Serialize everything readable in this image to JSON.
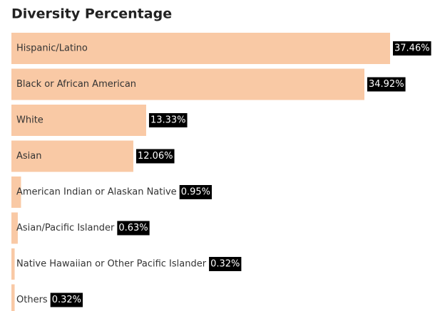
{
  "chart_data": {
    "type": "bar",
    "orientation": "horizontal",
    "title": "Diversity Percentage",
    "categories": [
      "Hispanic/Latino",
      "Black or African American",
      "White",
      "Asian",
      "American Indian or Alaskan Native",
      "Asian/Pacific Islander",
      "Native Hawaiian or Other Pacific Islander",
      "Others"
    ],
    "values": [
      37.46,
      34.92,
      13.33,
      12.06,
      0.95,
      0.63,
      0.32,
      0.32
    ],
    "value_labels": [
      "37.46%",
      "34.92%",
      "13.33%",
      "12.06%",
      "0.95%",
      "0.63%",
      "0.32%",
      "0.32%"
    ],
    "color": "#f9c9a5"
  }
}
